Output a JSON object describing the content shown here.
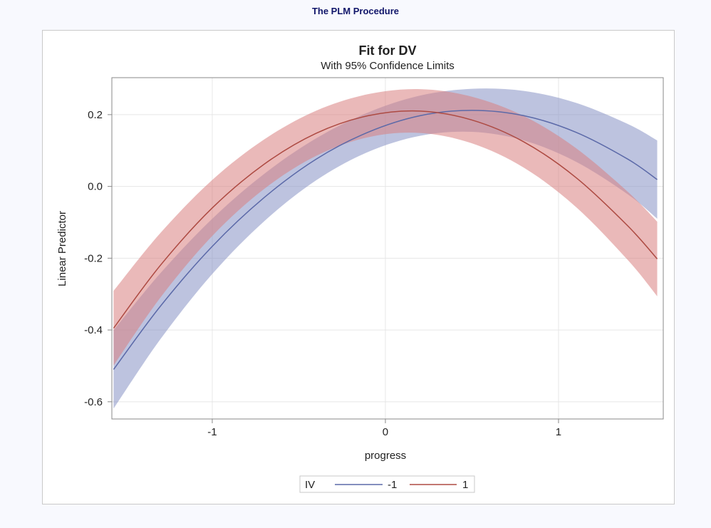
{
  "procedure_title": "The PLM Procedure",
  "colors": {
    "series_neg1_line": "#5b69a8",
    "series_neg1_band": "#8791c4",
    "series_1_line": "#ad4a42",
    "series_1_band": "#d97f7f"
  },
  "chart_data": {
    "type": "line",
    "title": "Fit for DV",
    "subtitle": "With 95% Confidence Limits",
    "xlabel": "progress",
    "ylabel": "Linear Predictor",
    "xlim": [
      -1.58,
      1.605
    ],
    "ylim": [
      -0.648,
      0.303
    ],
    "xticks": [
      -1,
      0,
      1
    ],
    "xtick_labels": [
      "-1",
      "0",
      "1"
    ],
    "yticks": [
      0.2,
      0.0,
      -0.2,
      -0.4,
      -0.6
    ],
    "ytick_labels": [
      "0.2",
      "0.0",
      "-0.2",
      "-0.4",
      "-0.6"
    ],
    "grid": true,
    "legend": {
      "title": "IV",
      "placement": "bottom-center"
    },
    "x": [
      -1.57,
      -1.3,
      -1.0,
      -0.7,
      -0.4,
      -0.1,
      0.2,
      0.5,
      0.8,
      1.1,
      1.4,
      1.57
    ],
    "series": [
      {
        "name": "-1",
        "fit": [
          -0.51,
          -0.334,
          -0.167,
          -0.031,
          0.076,
          0.151,
          0.197,
          0.212,
          0.197,
          0.151,
          0.076,
          0.019
        ],
        "lower": [
          -0.619,
          -0.426,
          -0.244,
          -0.097,
          0.017,
          0.096,
          0.141,
          0.152,
          0.128,
          0.069,
          -0.022,
          -0.09
        ],
        "upper": [
          -0.401,
          -0.242,
          -0.09,
          0.035,
          0.134,
          0.206,
          0.253,
          0.272,
          0.266,
          0.233,
          0.174,
          0.128
        ]
      },
      {
        "name": "1",
        "fit": [
          -0.395,
          -0.22,
          -0.06,
          0.062,
          0.148,
          0.197,
          0.21,
          0.185,
          0.124,
          0.025,
          -0.11,
          -0.202
        ],
        "lower": [
          -0.499,
          -0.31,
          -0.138,
          -0.007,
          0.085,
          0.137,
          0.149,
          0.12,
          0.052,
          -0.057,
          -0.205,
          -0.306
        ],
        "upper": [
          -0.291,
          -0.13,
          0.018,
          0.131,
          0.211,
          0.257,
          0.271,
          0.25,
          0.196,
          0.107,
          -0.015,
          -0.098
        ]
      }
    ]
  }
}
